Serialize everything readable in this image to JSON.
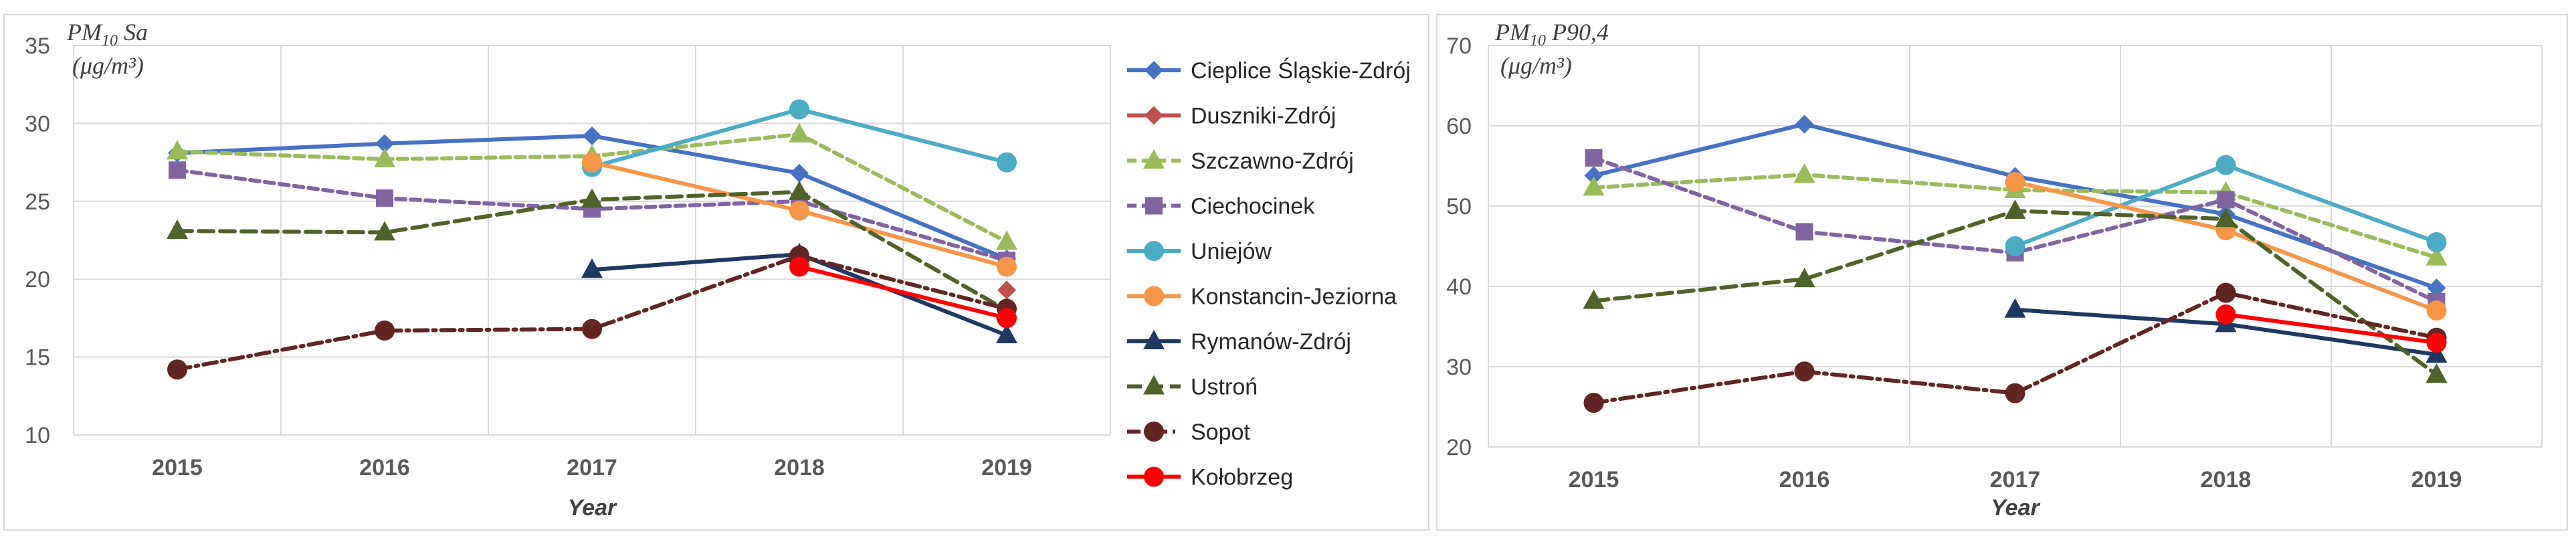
{
  "chart_data": [
    {
      "type": "line",
      "title": "",
      "ylabel_main": "PM",
      "ylabel_sub": "10",
      "ylabel_stat": "Sa",
      "yunit": "(μg/m³)",
      "xlabel": "Year",
      "ylim": [
        10,
        35
      ],
      "yticks": [
        10,
        15,
        20,
        25,
        30,
        35
      ],
      "categories": [
        "2015",
        "2016",
        "2017",
        "2018",
        "2019"
      ],
      "legend": "right",
      "series": [
        {
          "name": "Cieplice Śląskie-Zdrój",
          "color": "#4472c4",
          "dash": "",
          "marker": "diamond",
          "values": [
            28.1,
            28.7,
            29.2,
            26.8,
            21.3
          ]
        },
        {
          "name": "Duszniki-Zdrój",
          "color": "#c0504d",
          "dash": "",
          "marker": "diamond",
          "values": [
            null,
            null,
            null,
            null,
            19.3
          ]
        },
        {
          "name": "Szczawno-Zdrój",
          "color": "#9bbb59",
          "dash": "14,8",
          "marker": "triangle",
          "values": [
            28.2,
            27.7,
            27.9,
            29.3,
            22.4
          ]
        },
        {
          "name": "Ciechocinek",
          "color": "#8064a2",
          "dash": "14,8",
          "marker": "square",
          "values": [
            27.0,
            25.2,
            24.5,
            25.0,
            21.2
          ]
        },
        {
          "name": "Uniejów",
          "color": "#4bacc6",
          "dash": "",
          "marker": "circle",
          "values": [
            null,
            null,
            27.2,
            30.9,
            27.5
          ]
        },
        {
          "name": "Konstancin-Jeziorna",
          "color": "#f79646",
          "dash": "",
          "marker": "circle",
          "values": [
            null,
            null,
            27.5,
            24.4,
            20.8
          ]
        },
        {
          "name": "Rymanów-Zdrój",
          "color": "#1f3864",
          "dash": "",
          "marker": "triangle",
          "values": [
            null,
            null,
            20.6,
            21.6,
            16.4
          ]
        },
        {
          "name": "Ustroń",
          "color": "#4f6228",
          "dash": "22,10",
          "marker": "triangle",
          "values": [
            23.1,
            23.0,
            25.1,
            25.6,
            18.0
          ]
        },
        {
          "name": "Sopot",
          "color": "#632523",
          "dash": "20,8,4,8",
          "marker": "circle",
          "values": [
            14.2,
            16.7,
            16.8,
            21.5,
            18.1
          ]
        },
        {
          "name": "Kołobrzeg",
          "color": "#ff0000",
          "dash": "",
          "marker": "circle",
          "values": [
            null,
            null,
            null,
            20.8,
            17.5
          ]
        }
      ]
    },
    {
      "type": "line",
      "title": "",
      "ylabel_main": "PM",
      "ylabel_sub": "10",
      "ylabel_stat": "P90,4",
      "yunit": "(μg/m³)",
      "xlabel": "Year",
      "ylim": [
        20,
        70
      ],
      "yticks": [
        20,
        30,
        40,
        50,
        60,
        70
      ],
      "categories": [
        "2015",
        "2016",
        "2017",
        "2018",
        "2019"
      ],
      "series": [
        {
          "color": "#4472c4",
          "dash": "",
          "marker": "diamond",
          "values": [
            53.8,
            60.2,
            53.7,
            49.0,
            39.8
          ]
        },
        {
          "color": "#c0504d",
          "dash": "",
          "marker": "diamond",
          "values": [
            null,
            null,
            null,
            null,
            33.5
          ]
        },
        {
          "color": "#9bbb59",
          "dash": "14,8",
          "marker": "triangle",
          "values": [
            52.3,
            53.9,
            52.0,
            51.7,
            43.6
          ]
        },
        {
          "color": "#8064a2",
          "dash": "14,8",
          "marker": "square",
          "values": [
            56.0,
            46.8,
            44.2,
            50.8,
            38.1
          ]
        },
        {
          "color": "#4bacc6",
          "dash": "",
          "marker": "circle",
          "values": [
            null,
            null,
            45.0,
            55.1,
            45.5
          ]
        },
        {
          "color": "#f79646",
          "dash": "",
          "marker": "circle",
          "values": [
            null,
            null,
            53.0,
            47.0,
            37.0
          ]
        },
        {
          "color": "#1f3864",
          "dash": "",
          "marker": "triangle",
          "values": [
            null,
            null,
            37.1,
            35.3,
            31.5
          ]
        },
        {
          "color": "#4f6228",
          "dash": "22,10",
          "marker": "triangle",
          "values": [
            38.2,
            40.9,
            49.4,
            48.4,
            29.0
          ]
        },
        {
          "color": "#632523",
          "dash": "20,8,4,8",
          "marker": "circle",
          "values": [
            25.5,
            29.4,
            26.7,
            39.2,
            33.6
          ]
        },
        {
          "color": "#ff0000",
          "dash": "",
          "marker": "circle",
          "values": [
            null,
            null,
            null,
            36.5,
            33.0
          ]
        }
      ]
    }
  ]
}
